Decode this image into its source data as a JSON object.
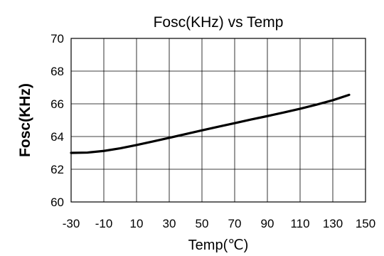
{
  "chart_data": {
    "type": "line",
    "title": "Fosc(KHz) vs Temp",
    "xlabel": "Temp(℃)",
    "ylabel": "Fosc(KHz)",
    "xlim": [
      -30,
      150
    ],
    "ylim": [
      60,
      70
    ],
    "x_ticks": [
      "-30",
      "-10",
      "10",
      "30",
      "50",
      "70",
      "90",
      "110",
      "130",
      "150"
    ],
    "y_ticks": [
      "60",
      "62",
      "64",
      "66",
      "68",
      "70"
    ],
    "grid": true,
    "series": [
      {
        "color": "#000000",
        "x": [
          -30,
          -20,
          -10,
          0,
          10,
          20,
          30,
          40,
          50,
          60,
          70,
          80,
          90,
          100,
          110,
          120,
          130,
          140
        ],
        "y": [
          63.0,
          63.02,
          63.12,
          63.28,
          63.48,
          63.7,
          63.92,
          64.15,
          64.38,
          64.6,
          64.82,
          65.04,
          65.25,
          65.47,
          65.7,
          65.95,
          66.22,
          66.55
        ]
      }
    ]
  }
}
